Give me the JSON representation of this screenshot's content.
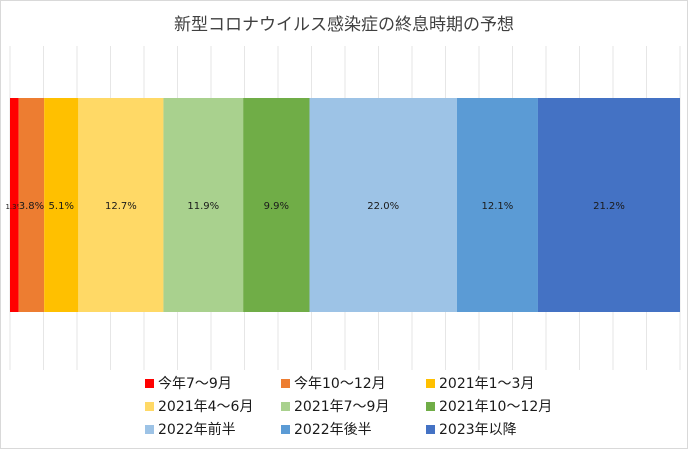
{
  "chart_data": {
    "type": "bar",
    "orientation": "horizontal-stacked-100",
    "title": "新型コロナウイルス感染症の終息時期の予想",
    "series": [
      {
        "name": "今年7～9月",
        "value": 1.3,
        "label": "1.3%",
        "color": "#ff0000"
      },
      {
        "name": "今年10～12月",
        "value": 3.8,
        "label": "3.8%",
        "color": "#ed7d31"
      },
      {
        "name": "2021年1～3月",
        "value": 5.1,
        "label": "5.1%",
        "color": "#ffc000"
      },
      {
        "name": "2021年4～6月",
        "value": 12.7,
        "label": "12.7%",
        "color": "#ffd966"
      },
      {
        "name": "2021年7～9月",
        "value": 11.9,
        "label": "11.9%",
        "color": "#a9d18e"
      },
      {
        "name": "2021年10～12月",
        "value": 9.9,
        "label": "9.9%",
        "color": "#70ad47"
      },
      {
        "name": "2022年前半",
        "value": 22.0,
        "label": "22.0%",
        "color": "#9dc3e6"
      },
      {
        "name": "2022年後半",
        "value": 12.1,
        "label": "12.1%",
        "color": "#5b9bd5"
      },
      {
        "name": "2023年以降",
        "value": 21.2,
        "label": "21.2%",
        "color": "#4472c4"
      }
    ],
    "xlim": [
      0,
      100
    ],
    "grid": true,
    "legend": "bottom"
  }
}
